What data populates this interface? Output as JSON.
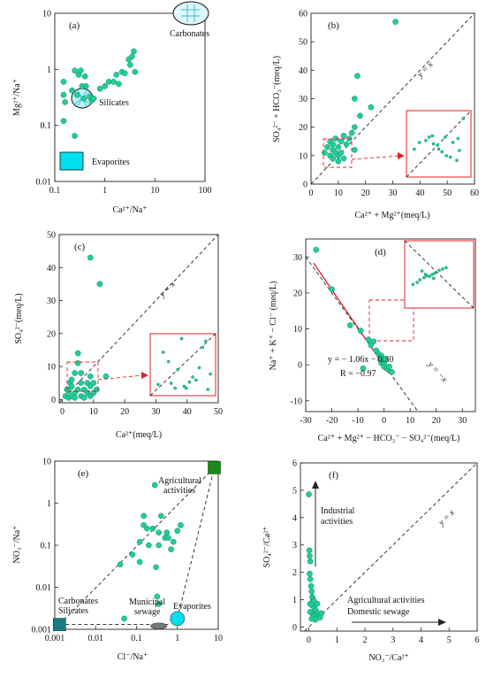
{
  "colors": {
    "point": "#22cc99",
    "accent_red": "#e02020",
    "evaporites_fill": "#00e0ee",
    "agri_fill": "#1a8a1a",
    "carbonate_fill": "#1a7a80"
  },
  "chart_data": [
    {
      "id": "a",
      "panel_label": "(a)",
      "type": "scatter",
      "xlabel": "Ca²⁺/Na⁺",
      "ylabel": "Mg²⁺/Na⁺",
      "xscale": "log",
      "yscale": "log",
      "xlim": [
        0.1,
        100
      ],
      "ylim": [
        0.01,
        10
      ],
      "xticks": [
        {
          "v": 0.1,
          "t": "0.1"
        },
        {
          "v": 1,
          "t": "1"
        },
        {
          "v": 10,
          "t": "10"
        },
        {
          "v": 100,
          "t": "100"
        }
      ],
      "yticks": [
        {
          "v": 0.01,
          "t": "0.01"
        },
        {
          "v": 0.1,
          "t": "0.1"
        },
        {
          "v": 1,
          "t": "1"
        },
        {
          "v": 10,
          "t": "10"
        }
      ],
      "annotations": {
        "carbonates": "Carbonates",
        "silicates": "Silicates",
        "evaporites": "Evaporites"
      },
      "points": [
        [
          0.15,
          0.6
        ],
        [
          0.15,
          0.35
        ],
        [
          0.16,
          0.26
        ],
        [
          0.15,
          0.12
        ],
        [
          0.22,
          0.42
        ],
        [
          0.25,
          0.95
        ],
        [
          0.25,
          0.065
        ],
        [
          0.28,
          0.35
        ],
        [
          0.3,
          0.8
        ],
        [
          0.33,
          0.95
        ],
        [
          0.35,
          0.5
        ],
        [
          0.38,
          0.3
        ],
        [
          0.4,
          0.75
        ],
        [
          0.42,
          0.5
        ],
        [
          0.5,
          0.32
        ],
        [
          0.55,
          0.28
        ],
        [
          0.6,
          0.3
        ],
        [
          0.8,
          0.45
        ],
        [
          1.0,
          0.5
        ],
        [
          1.2,
          0.6
        ],
        [
          1.5,
          0.6
        ],
        [
          1.7,
          0.8
        ],
        [
          1.9,
          0.55
        ],
        [
          2.2,
          0.9
        ],
        [
          2.5,
          0.85
        ],
        [
          3.0,
          1.5
        ],
        [
          3.2,
          1.2
        ],
        [
          3.5,
          1.7
        ],
        [
          3.8,
          2.1
        ],
        [
          4.0,
          0.9
        ]
      ]
    },
    {
      "id": "b",
      "panel_label": "(b)",
      "type": "scatter",
      "xlabel": "Ca²⁺ + Mg²⁺(meq/L)",
      "ylabel": "SO₄²⁻ + HCO₃⁻(meq/L)",
      "xlim": [
        0,
        60
      ],
      "ylim": [
        0,
        60
      ],
      "xticks": [
        0,
        10,
        20,
        30,
        40,
        50,
        60
      ],
      "yticks": [
        0,
        10,
        20,
        30,
        40,
        50,
        60
      ],
      "diag_label": "y = x",
      "points": [
        [
          5,
          11
        ],
        [
          6,
          13
        ],
        [
          7,
          10
        ],
        [
          7,
          15
        ],
        [
          8,
          9
        ],
        [
          8,
          12
        ],
        [
          8,
          14
        ],
        [
          9,
          11
        ],
        [
          9,
          16
        ],
        [
          10,
          8
        ],
        [
          10,
          10
        ],
        [
          10,
          13
        ],
        [
          11,
          11
        ],
        [
          11,
          15
        ],
        [
          12,
          9
        ],
        [
          12,
          17
        ],
        [
          13,
          14
        ],
        [
          14,
          16
        ],
        [
          15,
          18
        ],
        [
          16,
          12
        ],
        [
          16,
          20
        ],
        [
          16,
          30
        ],
        [
          17,
          38
        ],
        [
          18,
          24
        ],
        [
          22,
          27
        ],
        [
          31,
          57
        ]
      ],
      "inset_points": [
        [
          0.12,
          0.42
        ],
        [
          0.2,
          0.52
        ],
        [
          0.3,
          0.55
        ],
        [
          0.35,
          0.6
        ],
        [
          0.4,
          0.62
        ],
        [
          0.42,
          0.5
        ],
        [
          0.48,
          0.48
        ],
        [
          0.5,
          0.42
        ],
        [
          0.55,
          0.38
        ],
        [
          0.6,
          0.6
        ],
        [
          0.62,
          0.32
        ],
        [
          0.68,
          0.3
        ],
        [
          0.72,
          0.52
        ],
        [
          0.78,
          0.25
        ],
        [
          0.8,
          0.58
        ],
        [
          0.82,
          0.4
        ],
        [
          0.88,
          0.88
        ]
      ]
    },
    {
      "id": "c",
      "panel_label": "(c)",
      "type": "scatter",
      "xlabel": "Ca²⁺(meq/L)",
      "ylabel": "SO₄²⁻(meq/L)",
      "xlim": [
        -1,
        50
      ],
      "ylim": [
        -1,
        50
      ],
      "xticks": [
        0,
        10,
        20,
        30,
        40,
        50
      ],
      "yticks": [
        0,
        10,
        20,
        30,
        40,
        50
      ],
      "diag_label": "y = x",
      "points": [
        [
          1,
          1
        ],
        [
          1.5,
          3
        ],
        [
          2,
          0.5
        ],
        [
          2,
          2.5
        ],
        [
          2.5,
          5
        ],
        [
          3,
          1
        ],
        [
          3,
          4
        ],
        [
          3,
          6
        ],
        [
          4,
          2
        ],
        [
          4,
          0.5
        ],
        [
          4,
          8
        ],
        [
          5,
          3
        ],
        [
          5,
          11
        ],
        [
          5,
          14
        ],
        [
          6,
          1
        ],
        [
          6,
          5
        ],
        [
          6,
          8
        ],
        [
          7,
          3
        ],
        [
          7,
          0.5
        ],
        [
          8,
          2
        ],
        [
          8,
          5
        ],
        [
          9,
          1
        ],
        [
          9,
          4
        ],
        [
          9,
          7
        ],
        [
          10,
          2
        ],
        [
          10,
          5
        ],
        [
          11,
          3
        ],
        [
          14,
          7
        ],
        [
          9,
          43
        ],
        [
          12,
          35
        ]
      ],
      "inset_points": [
        [
          0.12,
          0.18
        ],
        [
          0.2,
          0.7
        ],
        [
          0.28,
          0.55
        ],
        [
          0.32,
          0.2
        ],
        [
          0.38,
          0.12
        ],
        [
          0.42,
          0.42
        ],
        [
          0.48,
          0.92
        ],
        [
          0.52,
          0.15
        ],
        [
          0.55,
          0.12
        ],
        [
          0.6,
          0.22
        ],
        [
          0.65,
          0.3
        ],
        [
          0.7,
          0.25
        ],
        [
          0.75,
          0.45
        ],
        [
          0.8,
          0.78
        ],
        [
          0.85,
          0.88
        ],
        [
          0.88,
          0.1
        ],
        [
          0.92,
          0.35
        ]
      ]
    },
    {
      "id": "d",
      "panel_label": "(d)",
      "type": "scatter",
      "xlabel": "Ca²⁺ + Mg²⁺ − HCO₃⁻ − SO₄²⁻(meq/L)",
      "ylabel": "Na⁺ + K⁺ − Cl⁻ (meq/L)",
      "xlim": [
        -30,
        35
      ],
      "ylim": [
        -13,
        35
      ],
      "xticks": [
        -30,
        -20,
        -10,
        0,
        10,
        20,
        30
      ],
      "yticks": [
        -10,
        0,
        10,
        20,
        30
      ],
      "diag_label": "y = −x",
      "fit": {
        "slope": -1.06,
        "intercept": -0.3,
        "x0": -27,
        "x1": 2
      },
      "equation": "y = − 1.06x − 0.30",
      "r_text": "R = −0.97",
      "points": [
        [
          -26,
          32
        ],
        [
          -20,
          21
        ],
        [
          -13,
          11
        ],
        [
          -9,
          9.5
        ],
        [
          -6,
          7
        ],
        [
          -5,
          5.5
        ],
        [
          -4,
          6.5
        ],
        [
          -3,
          4
        ],
        [
          -2,
          3
        ],
        [
          -1.5,
          1.5
        ],
        [
          -1,
          2.5
        ],
        [
          -1,
          0.5
        ],
        [
          0,
          0.5
        ],
        [
          0,
          -0.5
        ],
        [
          1,
          -1
        ],
        [
          1.5,
          -1.2
        ],
        [
          2,
          -0.5
        ],
        [
          3,
          -2
        ],
        [
          -8,
          -1
        ],
        [
          0.5,
          1.5
        ]
      ],
      "inset_points": [
        [
          0.12,
          0.35
        ],
        [
          0.18,
          0.38
        ],
        [
          0.22,
          0.42
        ],
        [
          0.28,
          0.45
        ],
        [
          0.32,
          0.48
        ],
        [
          0.36,
          0.47
        ],
        [
          0.4,
          0.5
        ],
        [
          0.44,
          0.52
        ],
        [
          0.5,
          0.56
        ],
        [
          0.55,
          0.58
        ],
        [
          0.6,
          0.6
        ],
        [
          0.3,
          0.5
        ],
        [
          0.42,
          0.44
        ],
        [
          0.25,
          0.55
        ]
      ]
    },
    {
      "id": "e",
      "panel_label": "(e)",
      "type": "scatter",
      "xlabel": "Cl⁻/Na⁺",
      "ylabel": "NO₃⁻/Na⁺",
      "xscale": "log",
      "yscale": "log",
      "xlim": [
        0.001,
        10
      ],
      "ylim": [
        0.001,
        10
      ],
      "xticks": [
        {
          "v": 0.001,
          "t": "0.001"
        },
        {
          "v": 0.01,
          "t": "0.01"
        },
        {
          "v": 0.1,
          "t": "0.1"
        },
        {
          "v": 1,
          "t": "1"
        },
        {
          "v": 10,
          "t": "10"
        }
      ],
      "yticks": [
        {
          "v": 0.001,
          "t": "0.001"
        },
        {
          "v": 0.01,
          "t": "0.01"
        },
        {
          "v": 0.1,
          "t": "0.1"
        },
        {
          "v": 1,
          "t": "1"
        },
        {
          "v": 10,
          "t": "10"
        }
      ],
      "annotations": {
        "agri": [
          "Agricultural",
          "activities"
        ],
        "carb": [
          "Carbonates",
          "Silicates"
        ],
        "muni": [
          "Municipal",
          "sewage"
        ],
        "evap": "Evaporites"
      },
      "points": [
        [
          0.04,
          0.035
        ],
        [
          0.08,
          0.06
        ],
        [
          0.12,
          0.12
        ],
        [
          0.12,
          0.04
        ],
        [
          0.15,
          0.3
        ],
        [
          0.15,
          0.5
        ],
        [
          0.18,
          0.25
        ],
        [
          0.2,
          0.1
        ],
        [
          0.25,
          0.25
        ],
        [
          0.28,
          2.7
        ],
        [
          0.3,
          0.03
        ],
        [
          0.35,
          0.1
        ],
        [
          0.35,
          0.2
        ],
        [
          0.4,
          0.5
        ],
        [
          0.5,
          0.15
        ],
        [
          0.55,
          0.2
        ],
        [
          0.6,
          0.15
        ],
        [
          0.7,
          0.08
        ],
        [
          0.8,
          0.12
        ],
        [
          1,
          0.22
        ],
        [
          1.2,
          0.3
        ],
        [
          0.32,
          0.006
        ],
        [
          0.35,
          0.004
        ],
        [
          0.05,
          0.0018
        ]
      ]
    },
    {
      "id": "f",
      "panel_label": "(f)",
      "type": "scatter",
      "xlabel": "NO₃⁻/Ca²⁺",
      "ylabel": "SO₄²⁻/Ca²⁺",
      "xlim": [
        -0.3,
        6
      ],
      "ylim": [
        -0.15,
        6
      ],
      "xticks": [
        0,
        1,
        2,
        3,
        4,
        5,
        6
      ],
      "yticks": [
        0,
        1,
        2,
        3,
        4,
        5,
        6
      ],
      "diag_label": "y = x",
      "annotations": {
        "industrial": [
          "Industrial",
          "activities"
        ],
        "agri": [
          "Agricultural activities",
          "Domestic sewage"
        ]
      },
      "points": [
        [
          0.0,
          4.85
        ],
        [
          0.02,
          2.8
        ],
        [
          0.03,
          2.6
        ],
        [
          0.05,
          2.4
        ],
        [
          0.03,
          1.95
        ],
        [
          0.05,
          1.75
        ],
        [
          0.08,
          1.5
        ],
        [
          0.1,
          1.3
        ],
        [
          0.12,
          1.1
        ],
        [
          0.15,
          1.0
        ],
        [
          0.05,
          0.85
        ],
        [
          0.1,
          0.8
        ],
        [
          0.2,
          0.7
        ],
        [
          0.25,
          0.6
        ],
        [
          0.3,
          0.5
        ],
        [
          0.15,
          0.45
        ],
        [
          0.2,
          0.4
        ],
        [
          0.35,
          0.4
        ],
        [
          0.4,
          0.35
        ],
        [
          0.1,
          0.3
        ],
        [
          0.25,
          0.28
        ],
        [
          0.45,
          0.5
        ],
        [
          0.05,
          0.55
        ],
        [
          0.18,
          0.95
        ],
        [
          0.3,
          0.85
        ]
      ]
    }
  ]
}
